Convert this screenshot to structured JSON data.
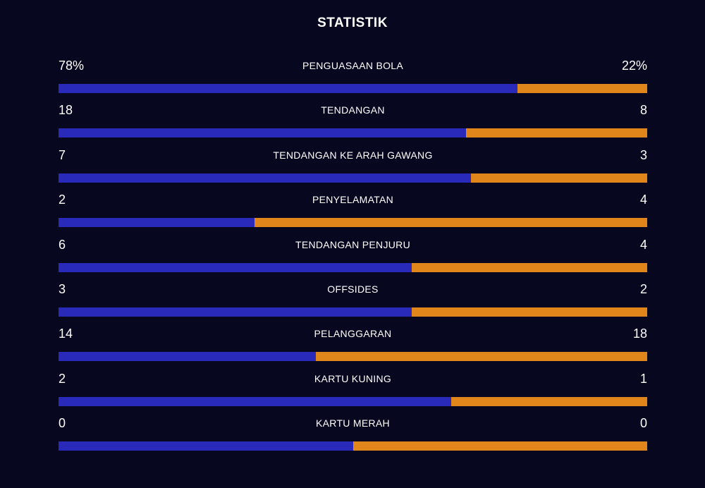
{
  "title": "STATISTIK",
  "colors": {
    "background": "#07071f",
    "home": "#2a2aba",
    "away": "#e0861a",
    "text": "#ffffff"
  },
  "stats": [
    {
      "label": "PENGUASAAN BOLA",
      "home": "78%",
      "away": "22%",
      "home_share": 0.78
    },
    {
      "label": "TENDANGAN",
      "home": "18",
      "away": "8",
      "home_share": 0.6923
    },
    {
      "label": "TENDANGAN KE ARAH GAWANG",
      "home": "7",
      "away": "3",
      "home_share": 0.7
    },
    {
      "label": "PENYELAMATAN",
      "home": "2",
      "away": "4",
      "home_share": 0.3333
    },
    {
      "label": "TENDANGAN PENJURU",
      "home": "6",
      "away": "4",
      "home_share": 0.6
    },
    {
      "label": "OFFSIDES",
      "home": "3",
      "away": "2",
      "home_share": 0.6
    },
    {
      "label": "PELANGGARAN",
      "home": "14",
      "away": "18",
      "home_share": 0.4375
    },
    {
      "label": "KARTU KUNING",
      "home": "2",
      "away": "1",
      "home_share": 0.6667
    },
    {
      "label": "KARTU MERAH",
      "home": "0",
      "away": "0",
      "home_share": 0.5
    }
  ]
}
